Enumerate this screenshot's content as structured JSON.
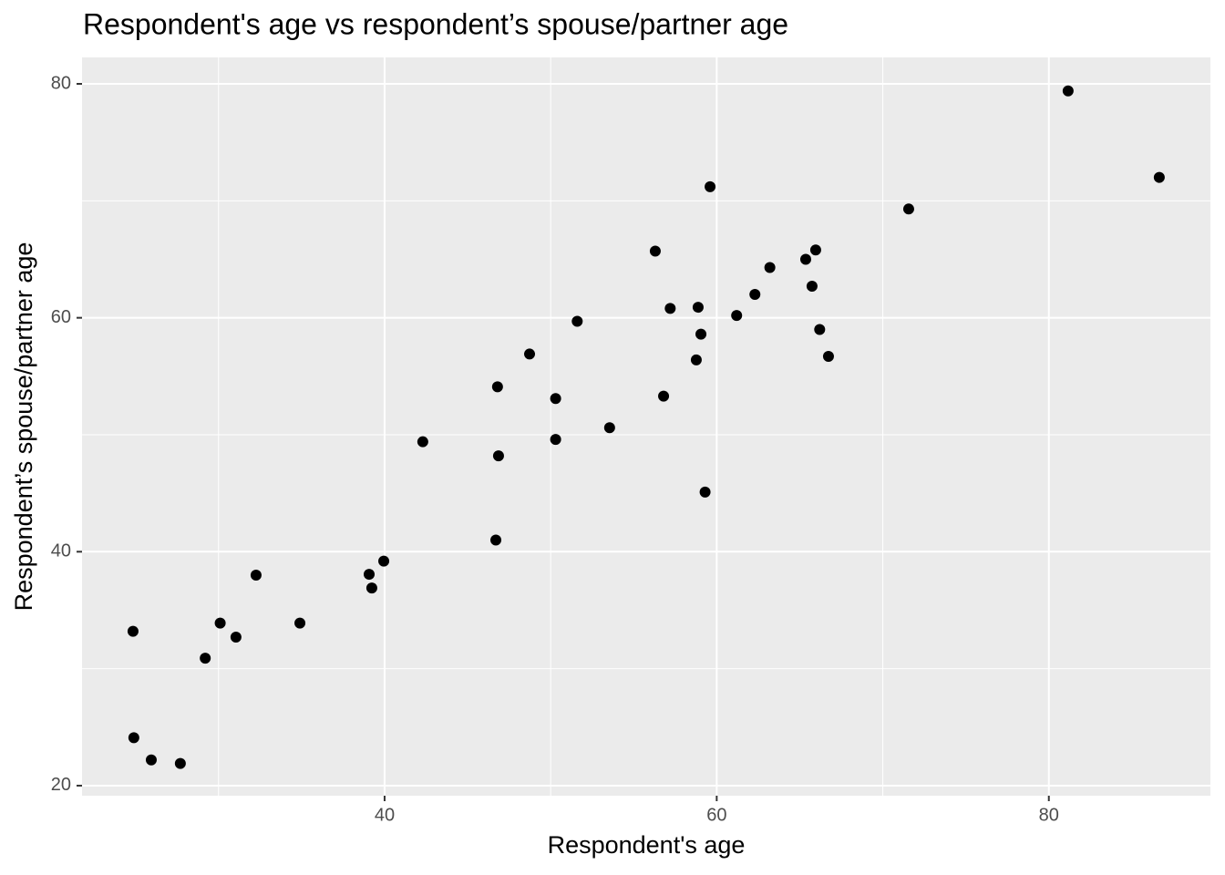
{
  "chart_data": {
    "type": "scatter",
    "title": "Respondent's age vs respondent’s spouse/partner age",
    "x_label": "Respondent's age",
    "y_label": "Respondent’s spouse/partner age",
    "x": [
      24.85,
      24.9,
      25.95,
      27.7,
      29.2,
      30.1,
      31.05,
      32.26,
      34.9,
      39.07,
      39.23,
      39.95,
      42.3,
      46.7,
      46.8,
      46.86,
      48.73,
      50.3,
      50.3,
      51.6,
      53.55,
      56.3,
      56.8,
      57.2,
      58.77,
      58.88,
      59.05,
      59.3,
      59.6,
      61.2,
      62.3,
      63.2,
      65.36,
      65.74,
      65.96,
      66.2,
      66.73,
      71.56,
      81.16,
      86.65
    ],
    "values": [
      33.2,
      24.1,
      22.2,
      21.9,
      30.9,
      33.9,
      32.7,
      38.0,
      33.9,
      38.07,
      36.9,
      39.2,
      49.4,
      41.0,
      54.1,
      48.2,
      56.9,
      53.1,
      49.6,
      59.7,
      50.6,
      65.7,
      53.3,
      60.8,
      56.4,
      60.9,
      58.6,
      45.1,
      71.2,
      60.2,
      62.0,
      64.3,
      65.0,
      62.7,
      65.8,
      59.0,
      56.7,
      69.3,
      79.4,
      72.0
    ],
    "color": "#000000",
    "xlim": [
      21.78,
      89.73
    ],
    "xticks": [
      40,
      60,
      80
    ],
    "ylim": [
      19.14,
      82.26
    ],
    "yticks": [
      20,
      40,
      60,
      80
    ],
    "grid": true,
    "minor_grid": true
  }
}
